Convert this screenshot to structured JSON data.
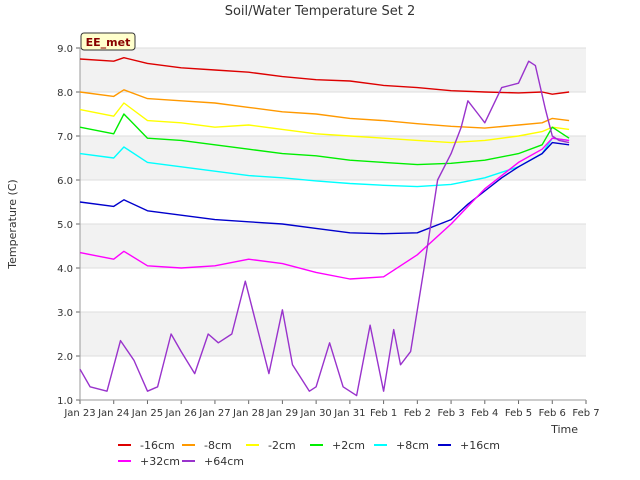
{
  "chart_data": {
    "type": "line",
    "title": "Soil/Water Temperature Set 2",
    "xlabel": "Time",
    "ylabel": "Temperature (C)",
    "ylim": [
      1.0,
      9.0
    ],
    "xlim": [
      0,
      15
    ],
    "yticks": [
      "1.0",
      "2.0",
      "3.0",
      "4.0",
      "5.0",
      "6.0",
      "7.0",
      "8.0",
      "9.0"
    ],
    "xticks": [
      "Jan 23",
      "Jan 24",
      "Jan 25",
      "Jan 26",
      "Jan 27",
      "Jan 28",
      "Jan 29",
      "Jan 30",
      "Jan 31",
      "Feb 1",
      "Feb 2",
      "Feb 3",
      "Feb 4",
      "Feb 5",
      "Feb 6",
      "Feb 7"
    ],
    "grid": "horizontal bands",
    "station_label": "EE_met",
    "legend_position": "bottom",
    "series": [
      {
        "name": "-16cm",
        "color": "#dd0000",
        "x": [
          0,
          1,
          1.3,
          2,
          3,
          4,
          5,
          6,
          7,
          8,
          9,
          10,
          11,
          12,
          13,
          13.7,
          14,
          14.5
        ],
        "y": [
          8.75,
          8.7,
          8.78,
          8.65,
          8.55,
          8.5,
          8.45,
          8.35,
          8.28,
          8.25,
          8.15,
          8.1,
          8.03,
          8.0,
          7.98,
          8.0,
          7.95,
          8.0
        ]
      },
      {
        "name": "-8cm",
        "color": "#ff9900",
        "x": [
          0,
          1,
          1.3,
          2,
          3,
          4,
          5,
          6,
          7,
          8,
          9,
          10,
          11,
          12,
          13,
          13.7,
          14,
          14.5
        ],
        "y": [
          8.0,
          7.9,
          8.05,
          7.85,
          7.8,
          7.75,
          7.65,
          7.55,
          7.5,
          7.4,
          7.35,
          7.28,
          7.22,
          7.18,
          7.25,
          7.3,
          7.4,
          7.35
        ]
      },
      {
        "name": "-2cm",
        "color": "#ffff00",
        "x": [
          0,
          1,
          1.3,
          2,
          3,
          4,
          5,
          6,
          7,
          8,
          9,
          10,
          11,
          12,
          13,
          13.7,
          14,
          14.5
        ],
        "y": [
          7.6,
          7.45,
          7.75,
          7.35,
          7.3,
          7.2,
          7.25,
          7.15,
          7.05,
          7.0,
          6.95,
          6.9,
          6.85,
          6.9,
          7.0,
          7.1,
          7.2,
          7.15
        ]
      },
      {
        "name": "+2cm",
        "color": "#00ee00",
        "x": [
          0,
          1,
          1.3,
          2,
          3,
          4,
          5,
          6,
          7,
          8,
          9,
          10,
          11,
          12,
          13,
          13.7,
          14,
          14.5
        ],
        "y": [
          7.2,
          7.05,
          7.5,
          6.95,
          6.9,
          6.8,
          6.7,
          6.6,
          6.55,
          6.45,
          6.4,
          6.35,
          6.38,
          6.45,
          6.6,
          6.8,
          7.2,
          6.95
        ]
      },
      {
        "name": "+8cm",
        "color": "#00ffff",
        "x": [
          0,
          1,
          1.3,
          2,
          3,
          4,
          5,
          6,
          7,
          8,
          9,
          10,
          11,
          12,
          13,
          13.7,
          14,
          14.5
        ],
        "y": [
          6.6,
          6.5,
          6.75,
          6.4,
          6.3,
          6.2,
          6.1,
          6.05,
          5.98,
          5.92,
          5.88,
          5.85,
          5.9,
          6.05,
          6.3,
          6.6,
          6.95,
          6.9
        ]
      },
      {
        "name": "+16cm",
        "color": "#0000cc",
        "x": [
          0,
          1,
          1.3,
          2,
          3,
          4,
          5,
          6,
          7,
          8,
          9,
          10,
          11,
          11.5,
          12,
          12.5,
          13,
          13.7,
          14,
          14.5
        ],
        "y": [
          5.5,
          5.4,
          5.55,
          5.3,
          5.2,
          5.1,
          5.05,
          5.0,
          4.9,
          4.8,
          4.78,
          4.8,
          5.1,
          5.45,
          5.75,
          6.05,
          6.3,
          6.6,
          6.85,
          6.8
        ]
      },
      {
        "name": "+32cm",
        "color": "#ff00ff",
        "x": [
          0,
          1,
          1.3,
          2,
          3,
          4,
          5,
          6,
          7,
          8,
          9,
          10,
          11,
          12,
          13,
          13.7,
          14,
          14.5
        ],
        "y": [
          4.35,
          4.2,
          4.38,
          4.05,
          4.0,
          4.05,
          4.2,
          4.1,
          3.9,
          3.75,
          3.8,
          4.3,
          5.0,
          5.8,
          6.4,
          6.7,
          6.95,
          6.9
        ]
      },
      {
        "name": "+64cm",
        "color": "#9933cc",
        "x": [
          0,
          0.3,
          0.8,
          1.2,
          1.6,
          2,
          2.3,
          2.7,
          3.0,
          3.4,
          3.8,
          4.1,
          4.5,
          4.9,
          5.3,
          5.6,
          6.0,
          6.3,
          6.8,
          7.0,
          7.4,
          7.8,
          8.2,
          8.6,
          9.0,
          9.3,
          9.5,
          9.8,
          10.2,
          10.6,
          11.0,
          11.3,
          11.5,
          11.8,
          12.0,
          12.5,
          13.0,
          13.3,
          13.5,
          13.8,
          14.0,
          14.2,
          14.5
        ],
        "y": [
          1.7,
          1.3,
          1.2,
          2.35,
          1.9,
          1.2,
          1.3,
          2.5,
          2.1,
          1.6,
          2.5,
          2.3,
          2.5,
          3.7,
          2.5,
          1.6,
          3.05,
          1.8,
          1.2,
          1.3,
          2.3,
          1.3,
          1.1,
          2.7,
          1.2,
          2.6,
          1.8,
          2.1,
          4.0,
          6.0,
          6.6,
          7.2,
          7.8,
          7.5,
          7.3,
          8.1,
          8.2,
          8.7,
          8.6,
          7.6,
          7.0,
          6.9,
          6.85
        ]
      }
    ]
  }
}
